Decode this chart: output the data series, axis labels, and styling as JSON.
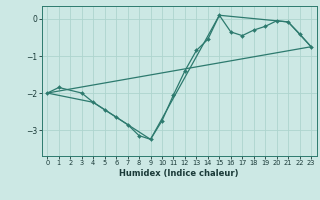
{
  "xlabel": "Humidex (Indice chaleur)",
  "background_color": "#cce8e4",
  "line_color": "#2d7a6e",
  "grid_color": "#aed4ce",
  "xlim": [
    -0.5,
    23.5
  ],
  "ylim": [
    -3.7,
    0.35
  ],
  "yticks": [
    0,
    -1,
    -2,
    -3
  ],
  "xticks": [
    0,
    1,
    2,
    3,
    4,
    5,
    6,
    7,
    8,
    9,
    10,
    11,
    12,
    13,
    14,
    15,
    16,
    17,
    18,
    19,
    20,
    21,
    22,
    23
  ],
  "series1_x": [
    0,
    1,
    3,
    4,
    5,
    6,
    7,
    8,
    9,
    10,
    11,
    12,
    13,
    14,
    15,
    16,
    17,
    18,
    19,
    20,
    21,
    22,
    23
  ],
  "series1_y": [
    -2.0,
    -1.85,
    -2.0,
    -2.25,
    -2.45,
    -2.65,
    -2.85,
    -3.15,
    -3.25,
    -2.75,
    -2.05,
    -1.4,
    -0.85,
    -0.55,
    0.1,
    -0.35,
    -0.45,
    -0.3,
    -0.2,
    -0.05,
    -0.08,
    -0.4,
    -0.75
  ],
  "series2_x": [
    0,
    23
  ],
  "series2_y": [
    -2.0,
    -0.75
  ],
  "series3_x": [
    0,
    4,
    9,
    15,
    21,
    23
  ],
  "series3_y": [
    -2.0,
    -2.25,
    -3.25,
    0.1,
    -0.08,
    -0.75
  ]
}
